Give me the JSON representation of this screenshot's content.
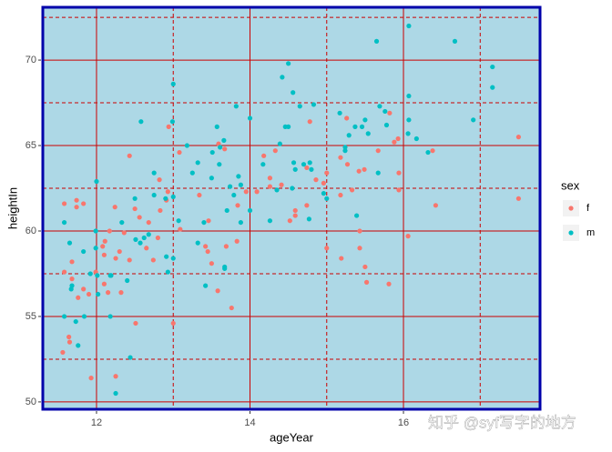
{
  "chart_data": {
    "type": "scatter",
    "x_label": "ageYear",
    "y_label": "heightIn",
    "legend_title": "sex",
    "legend": "right",
    "xlim": [
      11.3,
      17.78
    ],
    "ylim": [
      49.57,
      73.09
    ],
    "xticks": [
      12,
      14,
      16
    ],
    "yticks": [
      50,
      55,
      60,
      65,
      70
    ],
    "xminor": [
      13,
      15,
      17
    ],
    "yminor": [
      52.5,
      57.5,
      62.5,
      67.5,
      72.5
    ],
    "grid": true,
    "grid_color": "#cc0000",
    "panel_color": "#add8e6",
    "border_color": "#0000aa",
    "watermark": "知乎 @syf写字的地方",
    "series": [
      {
        "name": "f",
        "color": "#F8766D",
        "x": [
          11.56,
          11.58,
          11.58,
          11.64,
          11.65,
          11.68,
          11.68,
          11.74,
          11.74,
          11.76,
          11.83,
          11.83,
          11.9,
          11.93,
          11.99,
          12.08,
          12.1,
          12.1,
          12.11,
          12.15,
          12.17,
          12.24,
          12.25,
          12.25,
          12.3,
          12.32,
          12.36,
          12.43,
          12.43,
          12.5,
          12.51,
          12.56,
          12.65,
          12.68,
          12.74,
          12.8,
          12.82,
          12.83,
          12.91,
          12.93,
          12.94,
          13,
          13.08,
          13.09,
          13.34,
          13.42,
          13.45,
          13.46,
          13.5,
          13.58,
          13.59,
          13.67,
          13.69,
          13.76,
          13.83,
          13.84,
          13.95,
          14.09,
          14.18,
          14.26,
          14.26,
          14.33,
          14.41,
          14.52,
          14.59,
          14.59,
          14.74,
          14.74,
          14.78,
          14.86,
          14.96,
          15,
          15,
          15.18,
          15.18,
          15.19,
          15.26,
          15.27,
          15.33,
          15.42,
          15.43,
          15.43,
          15.49,
          15.5,
          15.52,
          15.67,
          15.81,
          15.82,
          15.88,
          15.93,
          15.94,
          15.94,
          16.06,
          16.38,
          16.42,
          17.5,
          17.5
        ],
        "values": [
          52.9,
          61.6,
          57.6,
          53.8,
          53.5,
          58.2,
          57.2,
          61.8,
          61.4,
          56.1,
          56.6,
          61.6,
          56.3,
          51.4,
          57.6,
          59.1,
          58.6,
          56.9,
          59.4,
          56.4,
          60,
          61.4,
          58.4,
          51.5,
          58.8,
          56.4,
          59.9,
          58.3,
          64.4,
          61.3,
          54.6,
          60.8,
          59,
          60.5,
          58.3,
          59.6,
          63,
          61.2,
          61.8,
          62.3,
          66.1,
          54.6,
          64.6,
          60.1,
          62.1,
          59.1,
          58.8,
          60.6,
          58.1,
          56.5,
          65.1,
          64.8,
          59.1,
          55.5,
          59.4,
          61.5,
          62.3,
          62.3,
          64.4,
          63.1,
          62.6,
          64.7,
          62.7,
          60.6,
          61.2,
          60.9,
          61.5,
          63.7,
          66.4,
          63,
          62.8,
          63.4,
          59,
          64.3,
          62.1,
          58.4,
          66.6,
          63.9,
          62.4,
          63.5,
          60,
          59,
          63.6,
          57.9,
          57,
          64.7,
          56.9,
          66.9,
          65.2,
          65.4,
          62.4,
          63.4,
          59.7,
          64.7,
          61.5,
          65.5,
          61.9
        ]
      },
      {
        "name": "m",
        "color": "#00BFC4",
        "x": [
          11.58,
          11.58,
          11.65,
          11.68,
          11.67,
          11.73,
          11.76,
          11.83,
          11.84,
          11.92,
          11.99,
          11.99,
          12,
          12.01,
          12.02,
          12.18,
          12.18,
          12.19,
          12.25,
          12.33,
          12.4,
          12.44,
          12.5,
          12.51,
          12.57,
          12.58,
          12.62,
          12.68,
          12.75,
          12.75,
          12.9,
          12.91,
          12.93,
          13,
          12.99,
          13,
          13,
          13.07,
          13.18,
          13.25,
          13.32,
          13.32,
          13.4,
          13.42,
          13.5,
          13.51,
          13.57,
          13.6,
          13.61,
          13.66,
          13.67,
          13.67,
          13.7,
          13.74,
          13.79,
          13.82,
          13.85,
          13.88,
          13.88,
          14,
          14,
          14.17,
          14.26,
          14.35,
          14.39,
          14.42,
          14.46,
          14.5,
          14.5,
          14.55,
          14.56,
          14.57,
          14.59,
          14.65,
          14.7,
          14.78,
          14.77,
          14.8,
          14.83,
          14.96,
          15,
          15.17,
          15.24,
          15.24,
          15.29,
          15.37,
          15.39,
          15.46,
          15.5,
          15.54,
          15.65,
          15.67,
          15.69,
          15.76,
          15.78,
          16.06,
          16.07,
          16.07,
          16.07,
          16.17,
          16.32,
          16.67,
          16.91,
          17.16,
          17.16
        ],
        "values": [
          60.5,
          55,
          59.3,
          56.8,
          56.6,
          54.7,
          53.3,
          58.8,
          55,
          57.5,
          60,
          59,
          62.9,
          57.4,
          56.3,
          57.4,
          55,
          57.4,
          50.5,
          60.5,
          57.1,
          52.6,
          61.9,
          59.5,
          59.3,
          66.4,
          59.6,
          59.8,
          63.4,
          62.1,
          61.9,
          58.5,
          57.6,
          68.6,
          66.4,
          62,
          58.4,
          60.6,
          65,
          63.4,
          59.3,
          64,
          60.5,
          56.8,
          63.1,
          64.6,
          66.1,
          63.9,
          64.9,
          65.3,
          57.9,
          57.8,
          61.2,
          62.6,
          62.1,
          67.3,
          63.2,
          62.7,
          60.5,
          66.6,
          61.2,
          63.9,
          60.6,
          62.4,
          65.1,
          69,
          66.1,
          69.8,
          66.1,
          62.5,
          68.1,
          64,
          63.6,
          67.3,
          63.9,
          64,
          60.7,
          63.6,
          67.4,
          62.2,
          61.9,
          66.9,
          64.9,
          64.7,
          65.6,
          66.1,
          60.9,
          66.1,
          66.5,
          65.7,
          71.1,
          63.4,
          67.3,
          67,
          66.2,
          65.7,
          72,
          67.9,
          66.5,
          65.4,
          64.6,
          71.1,
          66.5,
          69.6,
          68.4
        ]
      }
    ]
  }
}
